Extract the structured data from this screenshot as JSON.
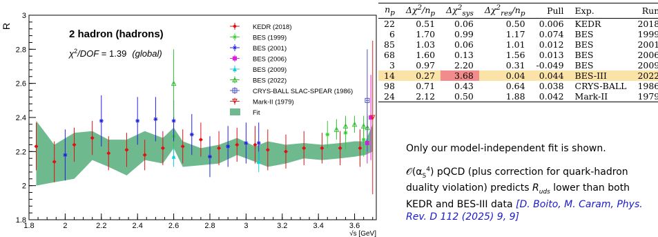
{
  "chart_data": {
    "type": "scatter",
    "title": "2 hadron (hadrons)",
    "subtitle_chi": "χ²/DOF = 1.39",
    "subtitle_scope": "(global)",
    "xlabel": "√s [GeV]",
    "ylabel": "R",
    "xlim": [
      1.8,
      3.72
    ],
    "ylim": [
      1.8,
      3.0
    ],
    "x_ticks": [
      1.8,
      2,
      2.2,
      2.4,
      2.6,
      2.8,
      3,
      3.2,
      3.4,
      3.6
    ],
    "y_ticks": [
      1.8,
      2,
      2.2,
      2.4,
      2.6,
      2.8,
      3
    ],
    "legend_position": "top-right",
    "series": [
      {
        "name": "KEDR (2018)",
        "color": "#e01010",
        "marker": "diamond",
        "points": [
          [
            1.84,
            2.23,
            0.14
          ],
          [
            1.94,
            2.14,
            0.12
          ],
          [
            2.05,
            2.24,
            0.1
          ],
          [
            2.15,
            2.28,
            0.1
          ],
          [
            2.24,
            2.19,
            0.1
          ],
          [
            2.34,
            2.21,
            0.1
          ],
          [
            2.44,
            2.18,
            0.09
          ],
          [
            2.54,
            2.22,
            0.1
          ],
          [
            2.65,
            2.23,
            0.1
          ],
          [
            2.75,
            2.27,
            0.1
          ],
          [
            2.85,
            2.22,
            0.1
          ],
          [
            2.95,
            2.24,
            0.1
          ],
          [
            3.05,
            2.24,
            0.11
          ],
          [
            3.12,
            2.21,
            0.12
          ],
          [
            3.22,
            2.2,
            0.1
          ],
          [
            3.32,
            2.22,
            0.1
          ],
          [
            3.42,
            2.22,
            0.09
          ],
          [
            3.52,
            2.22,
            0.1
          ],
          [
            3.63,
            2.22,
            0.11
          ]
        ]
      },
      {
        "name": "BES (1999)",
        "color": "#30d030",
        "marker": "star",
        "points": [
          [
            2.6,
            2.29,
            0.12
          ],
          [
            3.45,
            2.3,
            0.08
          ],
          [
            3.55,
            2.31,
            0.1
          ],
          [
            3.65,
            2.27,
            0.1
          ]
        ]
      },
      {
        "name": "BES (2001)",
        "color": "#2020e0",
        "marker": "star",
        "points": [
          [
            2.0,
            2.18,
            0.15
          ],
          [
            2.2,
            2.38,
            0.15
          ],
          [
            2.4,
            2.38,
            0.14
          ],
          [
            2.5,
            2.39,
            0.13
          ],
          [
            2.6,
            2.38,
            0.12
          ],
          [
            2.7,
            2.3,
            0.12
          ],
          [
            2.8,
            2.17,
            0.12
          ],
          [
            2.9,
            2.23,
            0.12
          ],
          [
            3.0,
            2.25,
            0.12
          ],
          [
            3.07,
            2.25,
            0.12
          ]
        ]
      },
      {
        "name": "BES (2006)",
        "color": "#e020e0",
        "marker": "square",
        "points": [
          [
            3.67,
            2.25,
            0.12
          ],
          [
            3.69,
            2.4,
            0.25
          ]
        ]
      },
      {
        "name": "BES (2009)",
        "color": "#10d0e0",
        "marker": "triangle-up",
        "points": [
          [
            2.6,
            2.17,
            0.06
          ],
          [
            3.07,
            2.14,
            0.06
          ]
        ]
      },
      {
        "name": "BES (2022)",
        "color": "#30c030",
        "marker": "open-triangle",
        "points": [
          [
            2.6,
            2.6,
            0.2
          ],
          [
            3.5,
            2.33,
            0.06
          ],
          [
            3.55,
            2.35,
            0.05
          ],
          [
            3.6,
            2.36,
            0.05
          ],
          [
            3.65,
            2.35,
            0.06
          ],
          [
            3.671,
            2.34,
            0.07
          ]
        ]
      },
      {
        "name": "CRYS-BALL SLAC-SPEAR (1986)",
        "color": "#5050c0",
        "marker": "open-square",
        "points": [
          [
            3.67,
            2.5,
            0.3
          ]
        ]
      },
      {
        "name": "Mark-II (1979)",
        "color": "#e02020",
        "marker": "open-triangle-down",
        "points": [
          [
            3.7,
            2.4,
            0.45
          ]
        ]
      }
    ],
    "fit": {
      "name": "Fit",
      "color": "#6fb98f",
      "x": [
        1.84,
        1.94,
        2.05,
        2.15,
        2.24,
        2.34,
        2.44,
        2.54,
        2.6,
        2.65,
        2.75,
        2.85,
        2.95,
        3.05,
        3.12,
        3.22,
        3.32,
        3.42,
        3.52,
        3.6,
        3.66,
        3.7
      ],
      "lower": [
        2.0,
        2.02,
        2.04,
        2.15,
        2.11,
        2.06,
        2.15,
        2.13,
        2.22,
        2.11,
        2.12,
        2.13,
        2.18,
        2.14,
        2.11,
        2.13,
        2.16,
        2.15,
        2.16,
        2.17,
        2.18,
        2.2
      ],
      "upper": [
        2.38,
        2.24,
        2.31,
        2.32,
        2.27,
        2.27,
        2.32,
        2.28,
        2.34,
        2.26,
        2.22,
        2.24,
        2.28,
        2.23,
        2.26,
        2.24,
        2.25,
        2.24,
        2.25,
        2.26,
        2.26,
        2.36
      ]
    }
  },
  "table": {
    "headers": [
      "n_p",
      "Δχ²/n_p",
      "Δχ²_sys",
      "Δχ²_res/n_p",
      "Pull",
      "Exp.",
      "Run"
    ],
    "rows": [
      [
        "22",
        "0.51",
        "0.06",
        "0.50",
        "0.006",
        "KEDR",
        "2018"
      ],
      [
        "6",
        "1.70",
        "0.99",
        "1.17",
        "0.074",
        "BES",
        "1999"
      ],
      [
        "85",
        "1.03",
        "0.06",
        "1.01",
        "0.012",
        "BES",
        "2001"
      ],
      [
        "68",
        "1.60",
        "0.13",
        "1.56",
        "0.013",
        "BES",
        "2006"
      ],
      [
        "3",
        "0.97",
        "2.20",
        "0.31",
        "-0.049",
        "BES",
        "2009"
      ],
      [
        "14",
        "0.27",
        "3.68",
        "0.04",
        "0.044",
        "BES-III",
        "2022"
      ],
      [
        "98",
        "0.71",
        "0.43",
        "0.64",
        "0.038",
        "CRYS-BALL",
        "1986"
      ],
      [
        "24",
        "2.12",
        "0.50",
        "1.88",
        "0.042",
        "Mark-II",
        "1979"
      ]
    ]
  },
  "notes": {
    "arrow_note": "Only our model-independent fit is shown.",
    "pqcd_lead": "𝒪(α_s⁴) pQCD (plus correction for quark-hadron duality violation) predicts",
    "rsub": "R_uds",
    "pqcd_tail": "lower than both KEDR and BES-III data",
    "citation": "[D. Boito, M. Caram, Phys. Rev. D 112 (2025) 9, 9]"
  }
}
